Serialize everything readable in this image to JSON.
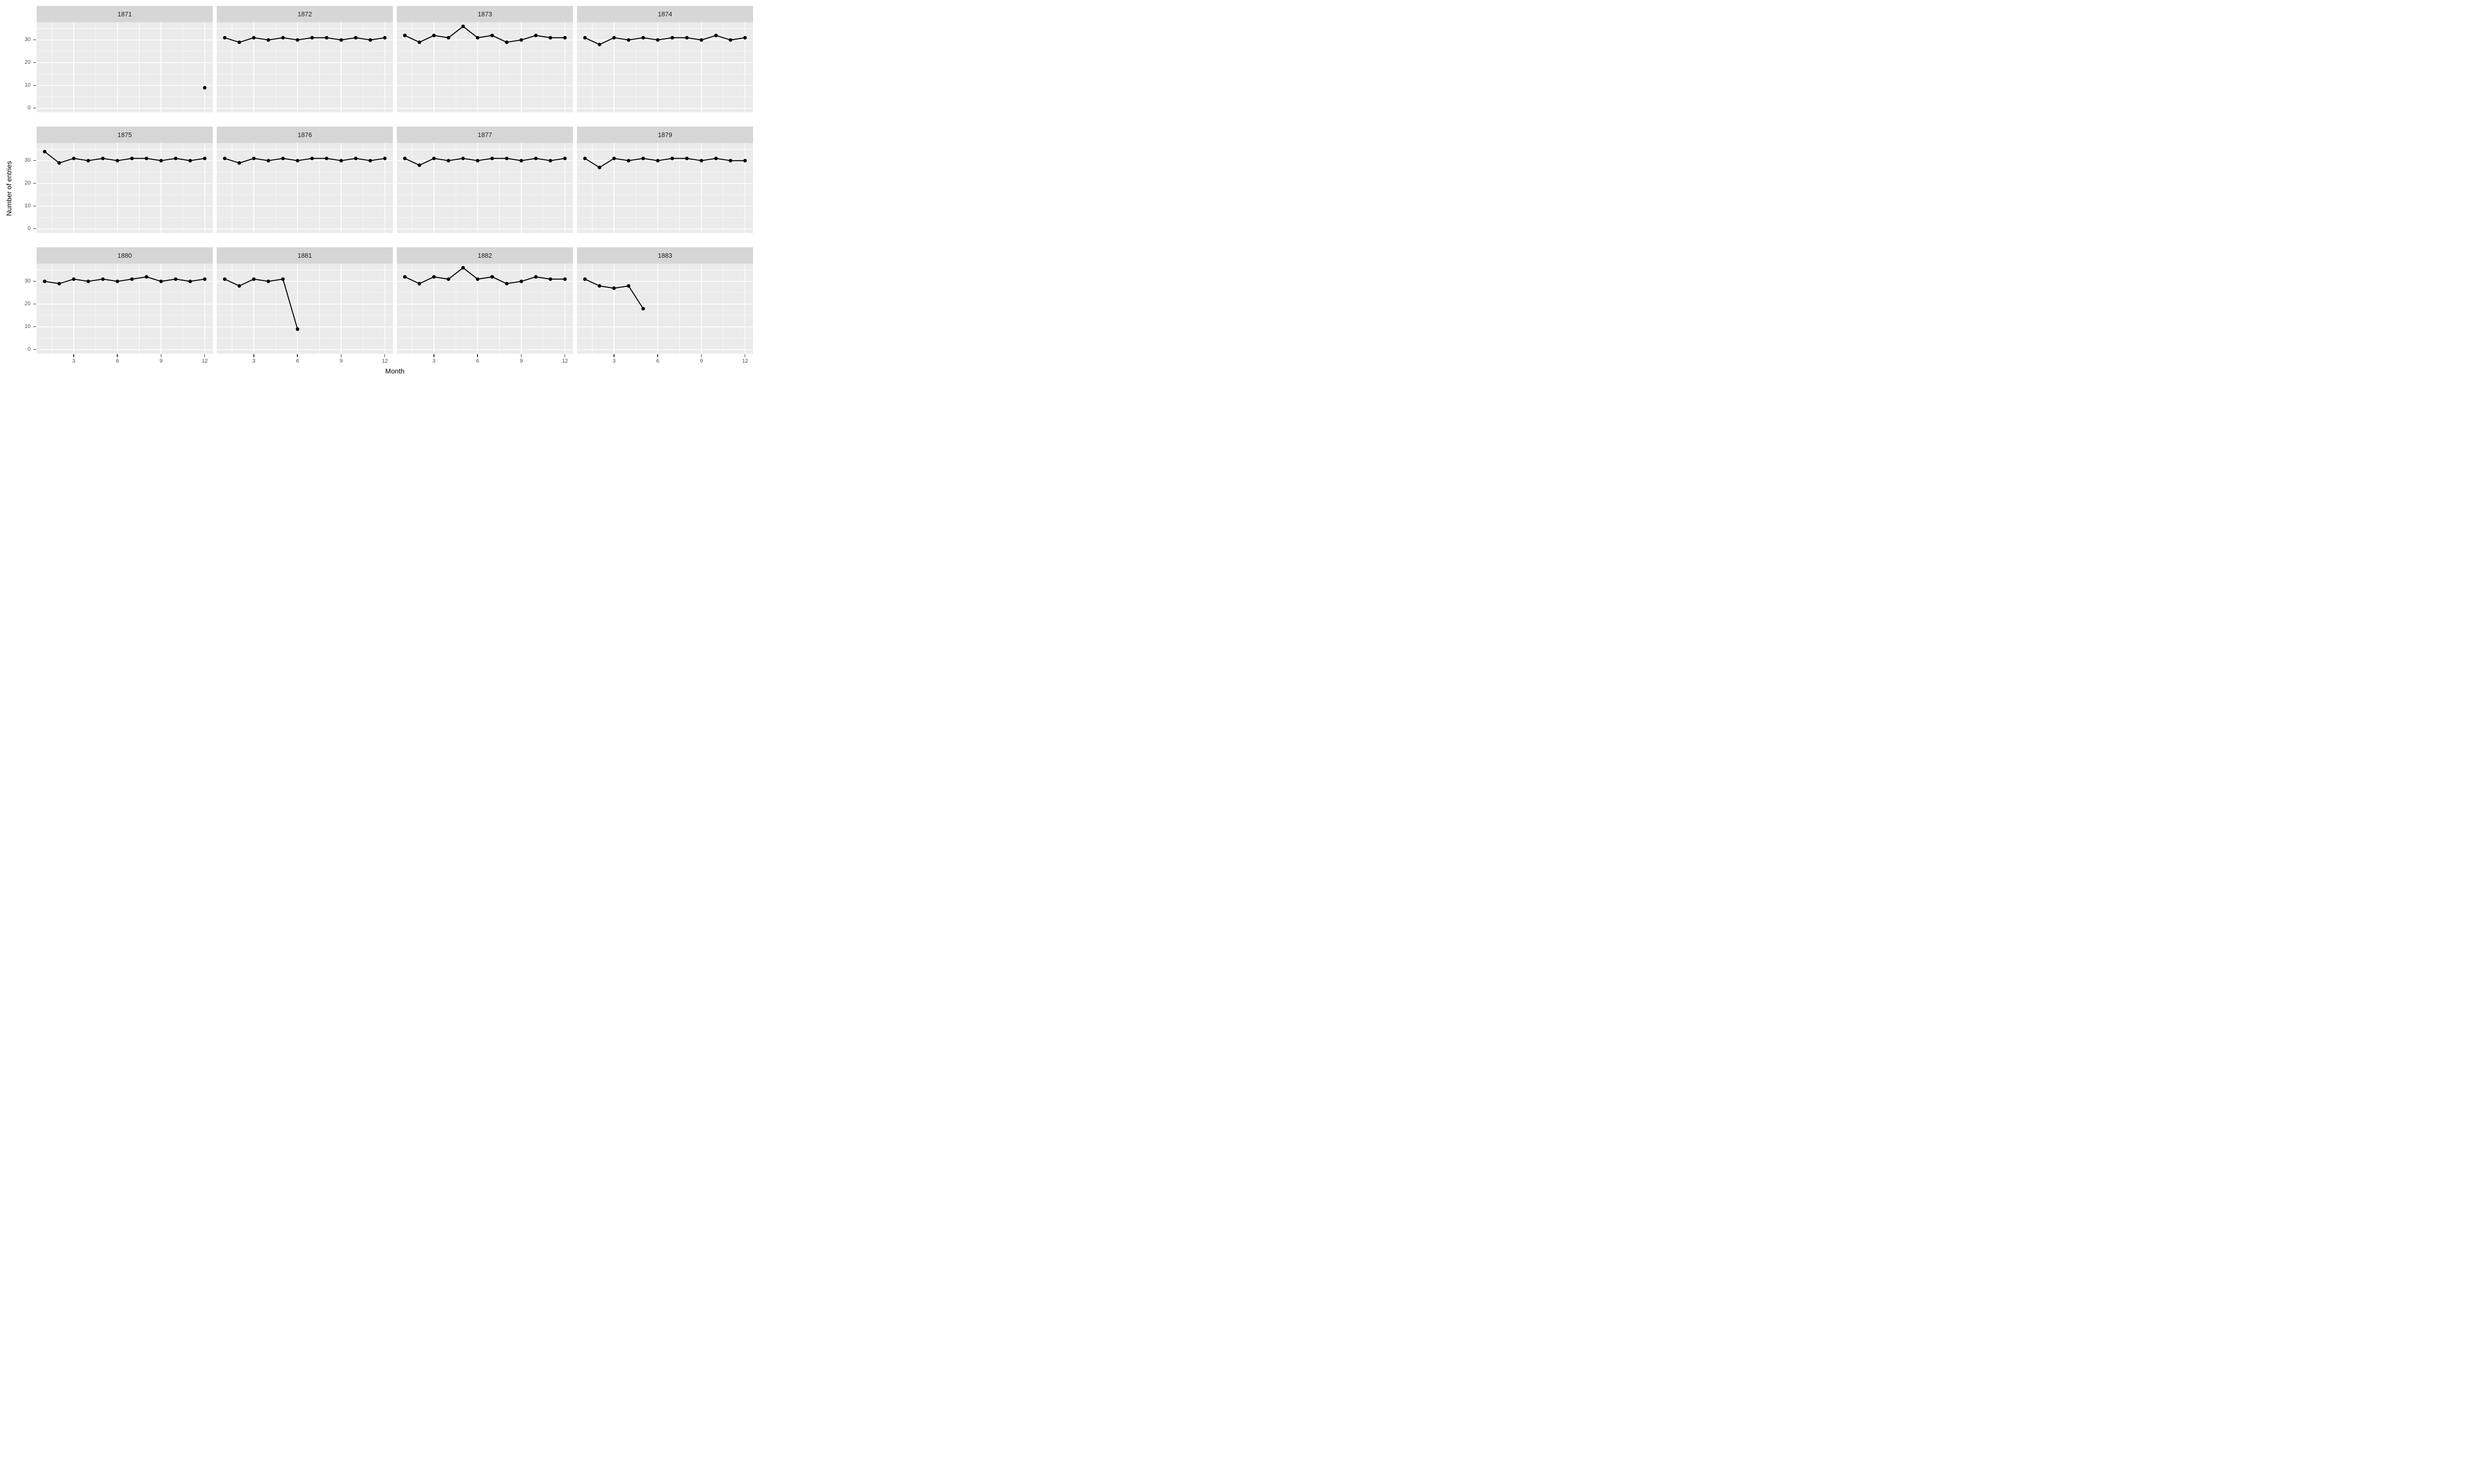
{
  "chart_data": {
    "type": "line",
    "title": "",
    "xlabel": "Month",
    "ylabel": "Number of entries",
    "facet_by": "year",
    "legend": "none",
    "grid": true,
    "x_ticks": [
      3,
      6,
      9,
      12
    ],
    "x_minor": [
      1.5,
      4.5,
      7.5,
      10.5
    ],
    "xlim": [
      0.45,
      12.55
    ],
    "y_ticks": [
      0,
      10,
      20,
      30
    ],
    "y_minor": [
      5,
      15,
      25,
      35
    ],
    "ylim": [
      -1.8,
      37.8
    ],
    "facets": [
      {
        "year": "1871",
        "months": [
          12
        ],
        "values": [
          9
        ]
      },
      {
        "year": "1872",
        "months": [
          1,
          2,
          3,
          4,
          5,
          6,
          7,
          8,
          9,
          10,
          11,
          12
        ],
        "values": [
          31,
          29,
          31,
          30,
          31,
          30,
          31,
          31,
          30,
          31,
          30,
          31
        ]
      },
      {
        "year": "1873",
        "months": [
          1,
          2,
          3,
          4,
          5,
          6,
          7,
          8,
          9,
          10,
          11,
          12
        ],
        "values": [
          32,
          29,
          32,
          31,
          36,
          31,
          32,
          29,
          30,
          32,
          31,
          31
        ]
      },
      {
        "year": "1874",
        "months": [
          1,
          2,
          3,
          4,
          5,
          6,
          7,
          8,
          9,
          10,
          11,
          12
        ],
        "values": [
          31,
          28,
          31,
          30,
          31,
          30,
          31,
          31,
          30,
          32,
          30,
          31
        ]
      },
      {
        "year": "1875",
        "months": [
          1,
          2,
          3,
          4,
          5,
          6,
          7,
          8,
          9,
          10,
          11,
          12
        ],
        "values": [
          34,
          29,
          31,
          30,
          31,
          30,
          31,
          31,
          30,
          31,
          30,
          31
        ]
      },
      {
        "year": "1876",
        "months": [
          1,
          2,
          3,
          4,
          5,
          6,
          7,
          8,
          9,
          10,
          11,
          12
        ],
        "values": [
          31,
          29,
          31,
          30,
          31,
          30,
          31,
          31,
          30,
          31,
          30,
          31
        ]
      },
      {
        "year": "1877",
        "months": [
          1,
          2,
          3,
          4,
          5,
          6,
          7,
          8,
          9,
          10,
          11,
          12
        ],
        "values": [
          31,
          28,
          31,
          30,
          31,
          30,
          31,
          31,
          30,
          31,
          30,
          31
        ]
      },
      {
        "year": "1879",
        "months": [
          1,
          2,
          3,
          4,
          5,
          6,
          7,
          8,
          9,
          10,
          11,
          12
        ],
        "values": [
          31,
          27,
          31,
          30,
          31,
          30,
          31,
          31,
          30,
          31,
          30,
          30
        ]
      },
      {
        "year": "1880",
        "months": [
          1,
          2,
          3,
          4,
          5,
          6,
          7,
          8,
          9,
          10,
          11,
          12
        ],
        "values": [
          30,
          29,
          31,
          30,
          31,
          30,
          31,
          32,
          30,
          31,
          30,
          31
        ]
      },
      {
        "year": "1881",
        "months": [
          1,
          2,
          3,
          4,
          5,
          6
        ],
        "values": [
          31,
          28,
          31,
          30,
          31,
          9
        ]
      },
      {
        "year": "1882",
        "months": [
          1,
          2,
          3,
          4,
          5,
          6,
          7,
          8,
          9,
          10,
          11,
          12
        ],
        "values": [
          32,
          29,
          32,
          31,
          36,
          31,
          32,
          29,
          30,
          32,
          31,
          31
        ]
      },
      {
        "year": "1883",
        "months": [
          1,
          2,
          3,
          4,
          5
        ],
        "values": [
          31,
          28,
          27,
          28,
          18
        ]
      }
    ],
    "colors": {
      "strip_bg": "#d6d6d6",
      "strip_text": "#1a1a1a",
      "panel_bg": "#ebebeb",
      "grid": "#ffffff",
      "series": "#000000",
      "axis_text": "#4d4d4d",
      "axis_title": "#000000",
      "tick_mark": "#333333"
    }
  }
}
